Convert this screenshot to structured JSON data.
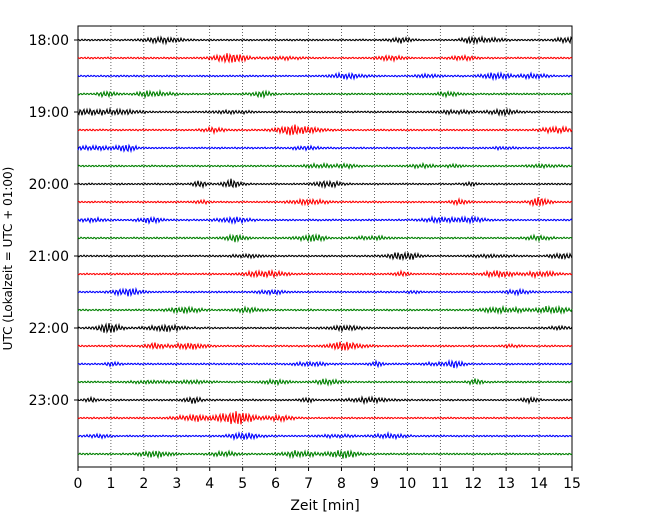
{
  "chart_data": {
    "type": "line",
    "title": "",
    "xlabel": "Zeit  [min]",
    "ylabel": "UTC (Lokalzeit = UTC + 01:00)",
    "xlim": [
      0,
      15
    ],
    "x_ticks": [
      "0",
      "1",
      "2",
      "3",
      "4",
      "5",
      "6",
      "7",
      "8",
      "9",
      "10",
      "11",
      "12",
      "13",
      "14",
      "15"
    ],
    "y_ticks": [
      "18:00",
      "19:00",
      "20:00",
      "21:00",
      "22:00",
      "23:00"
    ],
    "grid": "vertical dotted",
    "trace_start_times": [
      "18:00",
      "18:15",
      "18:30",
      "18:45",
      "19:00",
      "19:15",
      "19:30",
      "19:45",
      "20:00",
      "20:15",
      "20:30",
      "20:45",
      "21:00",
      "21:15",
      "21:30",
      "21:45",
      "22:00",
      "22:15",
      "22:30",
      "22:45",
      "23:00",
      "23:15",
      "23:30",
      "23:45"
    ],
    "trace_colors": [
      "#000000",
      "#ff0000",
      "#0000ff",
      "#008000"
    ]
  }
}
